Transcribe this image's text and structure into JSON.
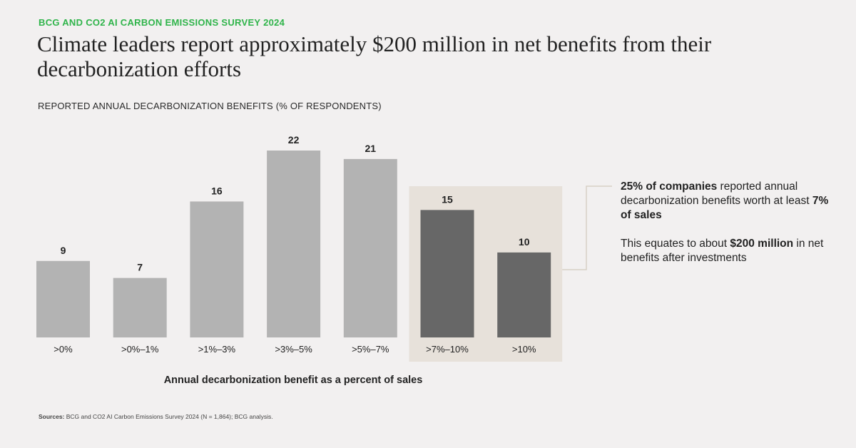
{
  "header": {
    "eyebrow": "BCG AND CO2 AI CARBON EMISSIONS SURVEY 2024",
    "title": "Climate leaders report approximately $200 million in net benefits from their decarbonization efforts"
  },
  "chart_data": {
    "type": "bar",
    "title": "REPORTED ANNUAL DECARBONIZATION BENEFITS (% OF RESPONDENTS)",
    "xlabel": "Annual decarbonization benefit as a percent of sales",
    "ylabel": "",
    "categories": [
      ">0%",
      ">0%–1%",
      ">1%–3%",
      ">3%–5%",
      ">5%–7%",
      ">7%–10%",
      ">10%"
    ],
    "values": [
      9,
      7,
      16,
      22,
      21,
      15,
      10
    ],
    "highlighted_categories": [
      ">7%–10%",
      ">10%"
    ],
    "ylim": [
      0,
      22
    ],
    "grid": false,
    "colors": {
      "bar": "#b3b3b3",
      "bar_highlight": "#676767",
      "highlight_box": "#e7e1da",
      "connector": "#d7d0c5"
    }
  },
  "annotation": {
    "line1_bold": "25% of companies",
    "line1_rest": " reported annual decarbonization benefits worth at least ",
    "line1_bold2": "7% of sales",
    "line2_start": "This equates to about ",
    "line2_bold": "$200 million",
    "line2_rest": " in net benefits after investments"
  },
  "source": {
    "label": "Sources:",
    "text": " BCG and CO2 AI Carbon Emissions Survey 2024 (N = 1,864); BCG analysis."
  }
}
